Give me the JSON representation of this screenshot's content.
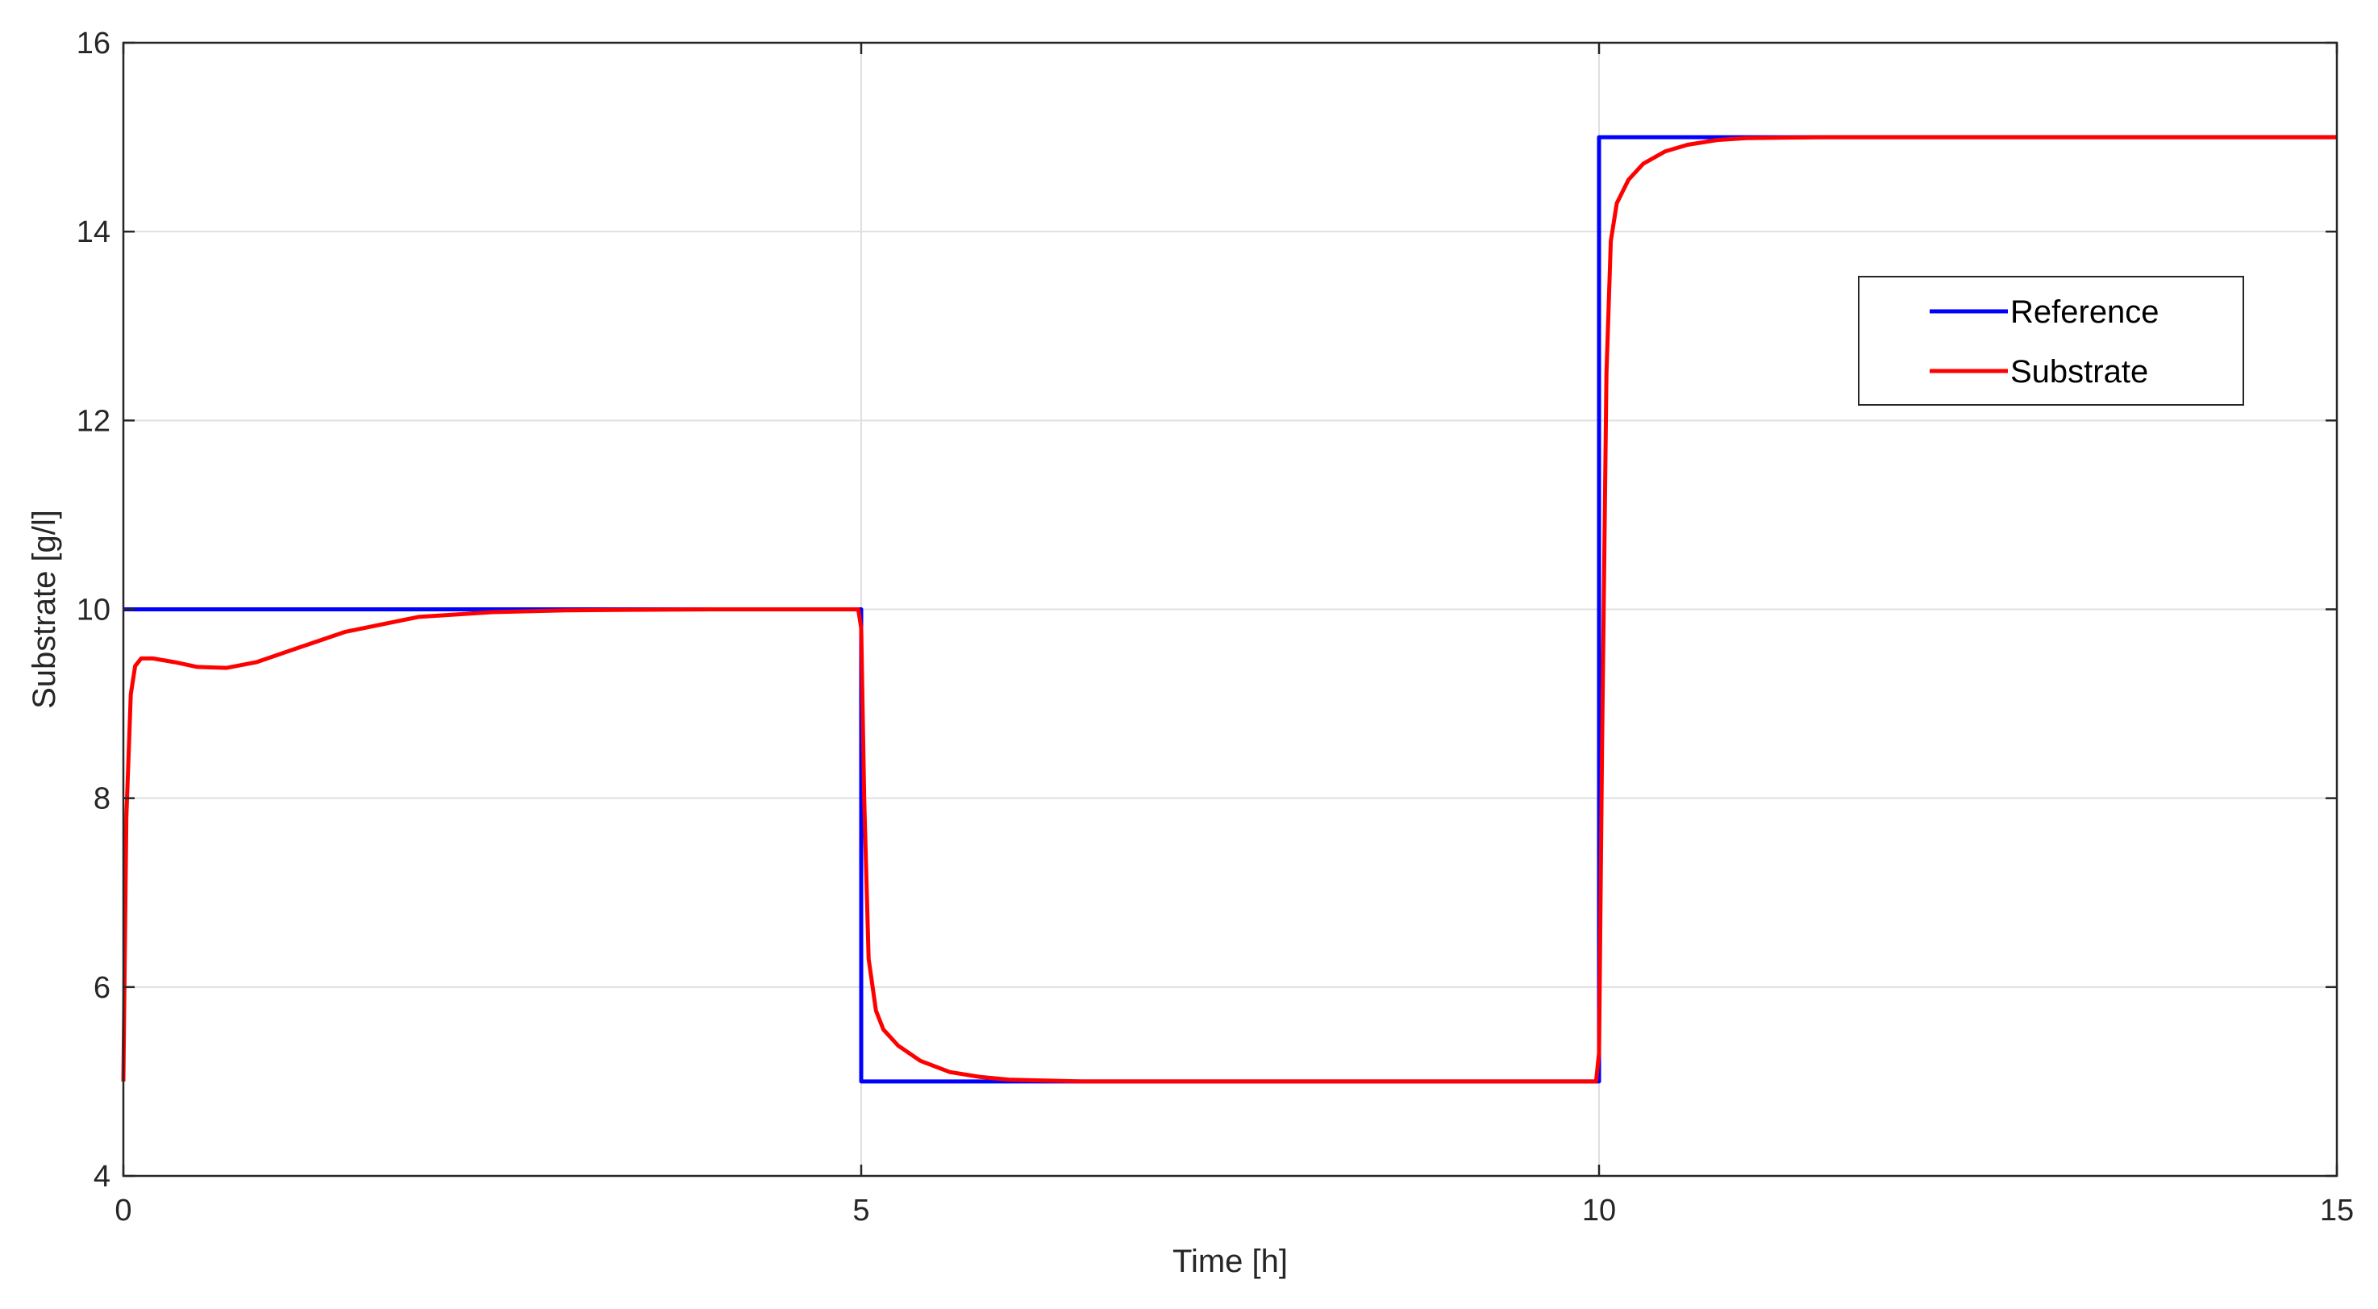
{
  "chart_data": {
    "type": "line",
    "title": "",
    "xlabel": "Time [h]",
    "ylabel": "Substrate [g/l]",
    "xlim": [
      0,
      15
    ],
    "ylim": [
      4,
      16
    ],
    "xticks": [
      0,
      5,
      10,
      15
    ],
    "yticks": [
      4,
      6,
      8,
      10,
      12,
      14,
      16
    ],
    "grid": true,
    "legend_position": "top-right",
    "series": [
      {
        "name": "Reference",
        "color": "#0000ff",
        "x": [
          0,
          5,
          5,
          10,
          10,
          15
        ],
        "y": [
          10,
          10,
          5,
          5,
          15,
          15
        ]
      },
      {
        "name": "Substrate",
        "color": "#ff0000",
        "x": [
          0,
          0.02,
          0.05,
          0.08,
          0.12,
          0.2,
          0.35,
          0.5,
          0.7,
          0.9,
          1.2,
          1.5,
          2.0,
          2.5,
          3.0,
          4.0,
          4.98,
          5.0,
          5.02,
          5.05,
          5.1,
          5.15,
          5.25,
          5.4,
          5.6,
          5.8,
          6.0,
          6.5,
          7.0,
          8.0,
          9.0,
          9.98,
          10.0,
          10.02,
          10.05,
          10.08,
          10.12,
          10.2,
          10.3,
          10.45,
          10.6,
          10.8,
          11.0,
          11.5,
          12.0,
          13.0,
          14.0,
          15.0
        ],
        "y": [
          5.0,
          7.8,
          9.1,
          9.4,
          9.48,
          9.48,
          9.44,
          9.39,
          9.38,
          9.44,
          9.6,
          9.76,
          9.92,
          9.97,
          9.99,
          10.0,
          10.0,
          9.8,
          8.0,
          6.3,
          5.75,
          5.55,
          5.38,
          5.22,
          5.1,
          5.05,
          5.02,
          5.0,
          5.0,
          5.0,
          5.0,
          5.0,
          5.3,
          8.5,
          12.5,
          13.9,
          14.3,
          14.55,
          14.72,
          14.85,
          14.92,
          14.97,
          14.99,
          15.0,
          15.0,
          15.0,
          15.0,
          15.0
        ]
      }
    ]
  }
}
